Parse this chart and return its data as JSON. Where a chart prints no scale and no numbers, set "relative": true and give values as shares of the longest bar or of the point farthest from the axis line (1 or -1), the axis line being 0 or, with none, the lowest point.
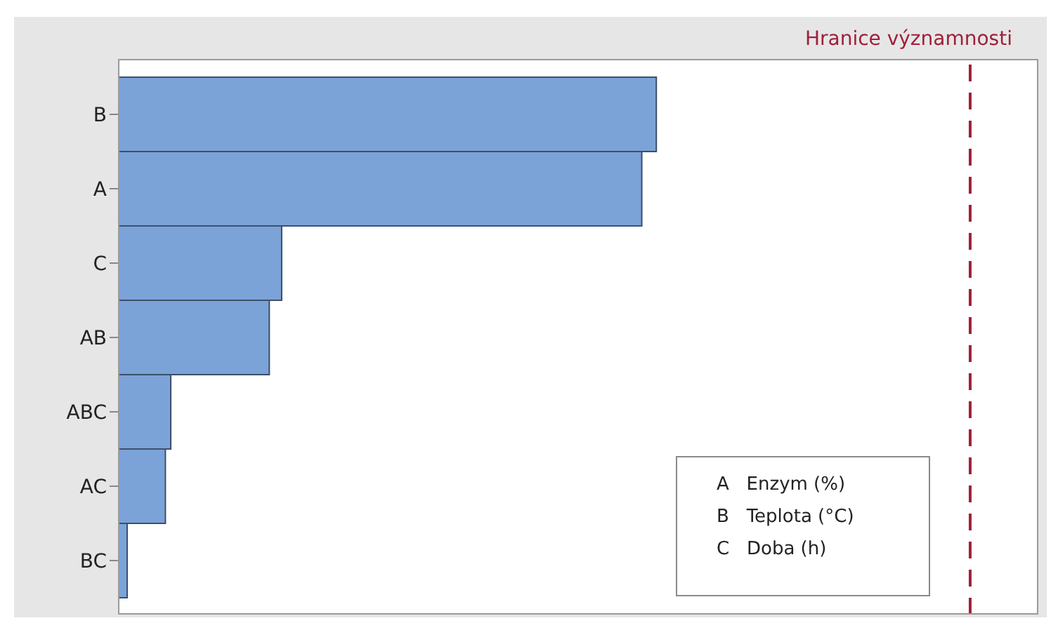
{
  "chart_data": {
    "type": "bar",
    "orientation": "horizontal",
    "relative": true,
    "categories": [
      "B",
      "A",
      "C",
      "AB",
      "ABC",
      "AC",
      "BC"
    ],
    "values": [
      1,
      0.973,
      0.304,
      0.281,
      0.098,
      0.088,
      0.017
    ],
    "color": "#7ba3d8",
    "ref_lines": [
      {
        "axis": "x",
        "value": 1.583,
        "label": "Hranice významnosti",
        "color": "#a0203a",
        "line_style": "dashed"
      }
    ],
    "annotations": [
      "A   Enzym (%)",
      "B   Teplota (°C)",
      "C   Doba (h)"
    ]
  }
}
